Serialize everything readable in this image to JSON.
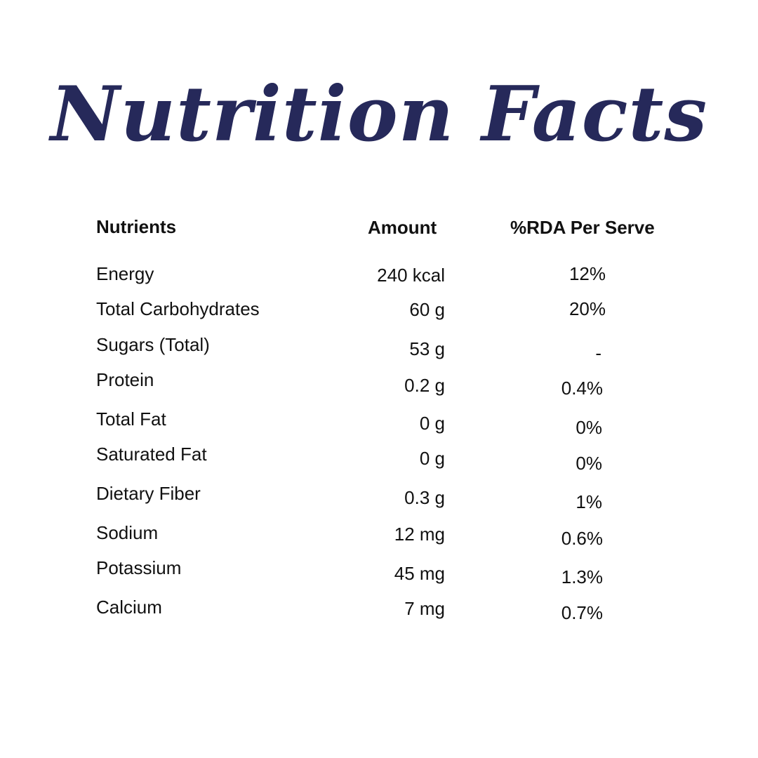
{
  "title": "Nutrition Facts",
  "headers": {
    "nutrients": "Nutrients",
    "amount": "Amount",
    "rda": "%RDA Per Serve"
  },
  "rows": [
    {
      "name": "Energy",
      "amount": "240 kcal",
      "rda": "12%"
    },
    {
      "name": "Total Carbohydrates",
      "amount": "60 g",
      "rda": "20%"
    },
    {
      "name": "Sugars (Total)",
      "amount": "53 g",
      "rda": "-"
    },
    {
      "name": "Protein",
      "amount": "0.2 g",
      "rda": "0.4%"
    },
    {
      "name": "Total Fat",
      "amount": "0 g",
      "rda": "0%"
    },
    {
      "name": "Saturated Fat",
      "amount": "0 g",
      "rda": "0%"
    },
    {
      "name": "Dietary Fiber",
      "amount": "0.3 g",
      "rda": "1%"
    },
    {
      "name": "Sodium",
      "amount": "12 mg",
      "rda": "0.6%"
    },
    {
      "name": "Potassium",
      "amount": "45 mg",
      "rda": "1.3%"
    },
    {
      "name": "Calcium",
      "amount": "7 mg",
      "rda": "0.7%"
    }
  ],
  "colors": {
    "title": "#26295a",
    "text": "#111111",
    "background": "#ffffff"
  }
}
